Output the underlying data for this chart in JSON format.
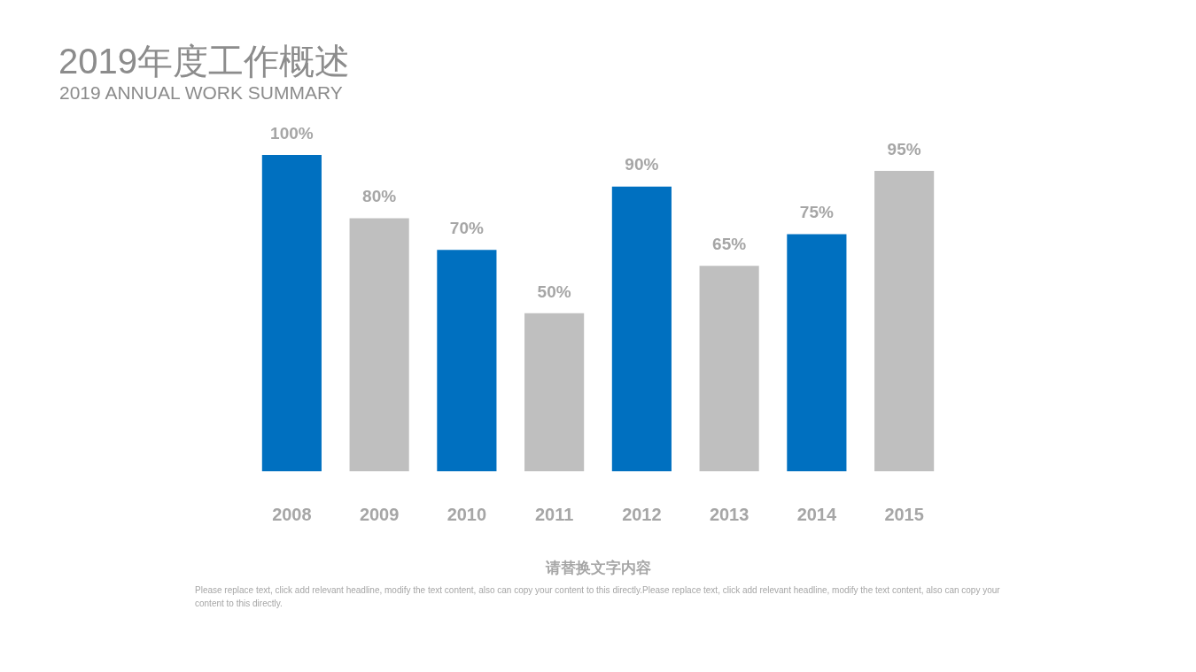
{
  "chart_data": {
    "type": "bar",
    "title": "2019年度工作概述",
    "subtitle": "2019 ANNUAL WORK SUMMARY",
    "xlabel": "请替换文字内容",
    "categories": [
      "2008",
      "2009",
      "2010",
      "2011",
      "2012",
      "2013",
      "2014",
      "2015"
    ],
    "values": [
      100,
      80,
      70,
      50,
      90,
      65,
      75,
      95
    ],
    "colors": [
      "#0070c0",
      "#bfbfbf",
      "#0070c0",
      "#bfbfbf",
      "#0070c0",
      "#bfbfbf",
      "#0070c0",
      "#bfbfbf"
    ],
    "value_labels": [
      "100%",
      "80%",
      "70%",
      "50%",
      "90%",
      "65%",
      "75%",
      "95%"
    ],
    "tick_labels": "x",
    "annotations": [
      "Please replace text, click add relevant headline, modify the text content, also can copy your content to this directly.Please replace text, click add relevant headline, modify the text content, also can copy your content to this directly."
    ]
  }
}
